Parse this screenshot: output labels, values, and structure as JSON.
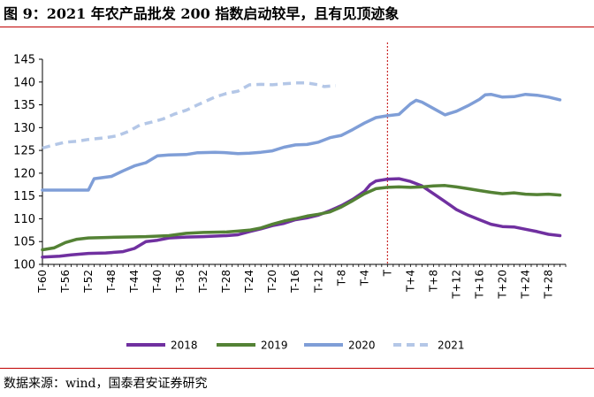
{
  "title": "图 9：2021 年农产品批发 200 指数启动较早，且有见顶迹象",
  "source": "数据来源：wind，国泰君安证券研究",
  "chart_data": {
    "type": "line",
    "x_labels": [
      "T-60",
      "T-56",
      "T-52",
      "T-48",
      "T-44",
      "T-40",
      "T-36",
      "T-32",
      "T-28",
      "T-24",
      "T-20",
      "T-16",
      "T-12",
      "T-8",
      "T-4",
      "T",
      "T+4",
      "T+8",
      "T+12",
      "T+16",
      "T+20",
      "T+24",
      "T+28"
    ],
    "x_range": [
      -60,
      31
    ],
    "ylim": [
      100,
      145
    ],
    "yticks": [
      100,
      105,
      110,
      115,
      120,
      125,
      130,
      135,
      140,
      145
    ],
    "reference_line_x": 0,
    "legend_position": "bottom",
    "series": [
      {
        "name": "2018",
        "color": "#7030a0",
        "dash": "solid",
        "points": [
          [
            -60,
            101.6
          ],
          [
            -57,
            101.8
          ],
          [
            -55,
            102.1
          ],
          [
            -52,
            102.4
          ],
          [
            -49,
            102.5
          ],
          [
            -46,
            102.8
          ],
          [
            -44,
            103.5
          ],
          [
            -42,
            105.0
          ],
          [
            -40,
            105.3
          ],
          [
            -38,
            105.8
          ],
          [
            -35,
            106.0
          ],
          [
            -32,
            106.1
          ],
          [
            -28,
            106.3
          ],
          [
            -26,
            106.5
          ],
          [
            -24,
            107.2
          ],
          [
            -22,
            107.8
          ],
          [
            -20,
            108.5
          ],
          [
            -18,
            109.0
          ],
          [
            -16,
            109.8
          ],
          [
            -14,
            110.2
          ],
          [
            -12,
            110.8
          ],
          [
            -10,
            111.8
          ],
          [
            -8,
            112.9
          ],
          [
            -6,
            114.3
          ],
          [
            -4,
            116.0
          ],
          [
            -3,
            117.5
          ],
          [
            -2,
            118.3
          ],
          [
            0,
            118.7
          ],
          [
            2,
            118.8
          ],
          [
            4,
            118.2
          ],
          [
            6,
            117.2
          ],
          [
            8,
            115.5
          ],
          [
            10,
            113.8
          ],
          [
            12,
            112.0
          ],
          [
            14,
            110.8
          ],
          [
            16,
            109.8
          ],
          [
            18,
            108.8
          ],
          [
            20,
            108.3
          ],
          [
            22,
            108.2
          ],
          [
            24,
            107.7
          ],
          [
            26,
            107.2
          ],
          [
            28,
            106.6
          ],
          [
            30,
            106.3
          ]
        ]
      },
      {
        "name": "2019",
        "color": "#548235",
        "dash": "solid",
        "points": [
          [
            -60,
            103.2
          ],
          [
            -58,
            103.6
          ],
          [
            -56,
            104.8
          ],
          [
            -54,
            105.5
          ],
          [
            -52,
            105.8
          ],
          [
            -49,
            105.9
          ],
          [
            -46,
            106.0
          ],
          [
            -42,
            106.1
          ],
          [
            -38,
            106.3
          ],
          [
            -35,
            106.8
          ],
          [
            -32,
            107.0
          ],
          [
            -28,
            107.1
          ],
          [
            -26,
            107.3
          ],
          [
            -24,
            107.5
          ],
          [
            -22,
            108.0
          ],
          [
            -20,
            108.8
          ],
          [
            -18,
            109.5
          ],
          [
            -16,
            110.0
          ],
          [
            -14,
            110.6
          ],
          [
            -12,
            111.0
          ],
          [
            -10,
            111.5
          ],
          [
            -8,
            112.6
          ],
          [
            -6,
            114.0
          ],
          [
            -4,
            115.5
          ],
          [
            -2,
            116.6
          ],
          [
            0,
            116.9
          ],
          [
            2,
            117.0
          ],
          [
            4,
            116.9
          ],
          [
            6,
            117.0
          ],
          [
            8,
            117.2
          ],
          [
            10,
            117.3
          ],
          [
            12,
            117.0
          ],
          [
            14,
            116.6
          ],
          [
            16,
            116.2
          ],
          [
            18,
            115.8
          ],
          [
            20,
            115.5
          ],
          [
            22,
            115.7
          ],
          [
            24,
            115.4
          ],
          [
            26,
            115.3
          ],
          [
            28,
            115.4
          ],
          [
            30,
            115.2
          ]
        ]
      },
      {
        "name": "2020",
        "color": "#7f9ed7",
        "dash": "solid",
        "points": [
          [
            -60,
            116.3
          ],
          [
            -56,
            116.3
          ],
          [
            -52,
            116.3
          ],
          [
            -51,
            118.8
          ],
          [
            -48,
            119.3
          ],
          [
            -46,
            120.5
          ],
          [
            -44,
            121.6
          ],
          [
            -42,
            122.3
          ],
          [
            -40,
            123.8
          ],
          [
            -38,
            124.0
          ],
          [
            -35,
            124.1
          ],
          [
            -33,
            124.5
          ],
          [
            -30,
            124.6
          ],
          [
            -28,
            124.5
          ],
          [
            -26,
            124.3
          ],
          [
            -24,
            124.4
          ],
          [
            -22,
            124.6
          ],
          [
            -20,
            124.9
          ],
          [
            -18,
            125.7
          ],
          [
            -16,
            126.2
          ],
          [
            -14,
            126.3
          ],
          [
            -12,
            126.8
          ],
          [
            -10,
            127.8
          ],
          [
            -8,
            128.3
          ],
          [
            -6,
            129.6
          ],
          [
            -4,
            131.0
          ],
          [
            -2,
            132.2
          ],
          [
            0,
            132.6
          ],
          [
            2,
            132.9
          ],
          [
            4,
            135.2
          ],
          [
            5,
            136.0
          ],
          [
            6,
            135.6
          ],
          [
            8,
            134.2
          ],
          [
            10,
            132.8
          ],
          [
            12,
            133.6
          ],
          [
            14,
            134.8
          ],
          [
            16,
            136.2
          ],
          [
            17,
            137.2
          ],
          [
            18,
            137.3
          ],
          [
            20,
            136.7
          ],
          [
            22,
            136.8
          ],
          [
            24,
            137.3
          ],
          [
            26,
            137.1
          ],
          [
            28,
            136.7
          ],
          [
            30,
            136.1
          ]
        ]
      },
      {
        "name": "2021",
        "color": "#b4c7e7",
        "dash": "dashed",
        "points": [
          [
            -60,
            125.5
          ],
          [
            -58,
            126.2
          ],
          [
            -56,
            126.8
          ],
          [
            -54,
            127.0
          ],
          [
            -52,
            127.4
          ],
          [
            -49,
            127.8
          ],
          [
            -47,
            128.2
          ],
          [
            -45,
            129.2
          ],
          [
            -43,
            130.6
          ],
          [
            -41,
            131.2
          ],
          [
            -39,
            131.9
          ],
          [
            -37,
            133.0
          ],
          [
            -35,
            133.8
          ],
          [
            -33,
            135.0
          ],
          [
            -30,
            136.7
          ],
          [
            -28,
            137.5
          ],
          [
            -26,
            138.0
          ],
          [
            -24,
            139.4
          ],
          [
            -22,
            139.5
          ],
          [
            -20,
            139.4
          ],
          [
            -18,
            139.6
          ],
          [
            -16,
            139.8
          ],
          [
            -14,
            139.8
          ],
          [
            -12,
            139.4
          ],
          [
            -11,
            139.0
          ],
          [
            -9,
            139.2
          ]
        ]
      }
    ]
  }
}
